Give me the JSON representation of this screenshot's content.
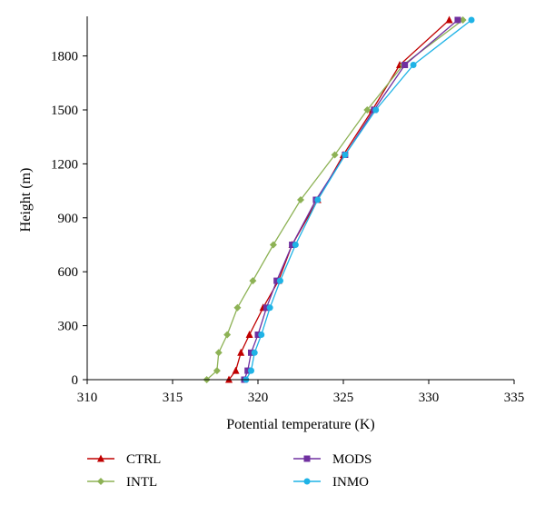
{
  "chart_data": {
    "type": "line",
    "xlabel": "Potential temperature (K)",
    "ylabel": "Height (m)",
    "xlim": [
      310,
      335
    ],
    "ylim": [
      0,
      2000
    ],
    "xticks": [
      310,
      315,
      320,
      325,
      330,
      335
    ],
    "yticks": [
      0,
      300,
      600,
      900,
      1200,
      1500,
      1800
    ],
    "legend_position": "bottom",
    "grid": false,
    "series": [
      {
        "name": "CTRL",
        "color": "#c00000",
        "marker": "triangle",
        "points": [
          {
            "x": 318.3,
            "y": 0
          },
          {
            "x": 318.7,
            "y": 50
          },
          {
            "x": 319.0,
            "y": 150
          },
          {
            "x": 319.5,
            "y": 250
          },
          {
            "x": 320.3,
            "y": 400
          },
          {
            "x": 321.2,
            "y": 550
          },
          {
            "x": 322.0,
            "y": 750
          },
          {
            "x": 323.5,
            "y": 1000
          },
          {
            "x": 325.0,
            "y": 1250
          },
          {
            "x": 326.7,
            "y": 1500
          },
          {
            "x": 328.3,
            "y": 1750
          },
          {
            "x": 331.2,
            "y": 2000
          }
        ]
      },
      {
        "name": "INTL",
        "color": "#8db255",
        "marker": "diamond",
        "points": [
          {
            "x": 317.0,
            "y": 0
          },
          {
            "x": 317.6,
            "y": 50
          },
          {
            "x": 317.7,
            "y": 150
          },
          {
            "x": 318.2,
            "y": 250
          },
          {
            "x": 318.8,
            "y": 400
          },
          {
            "x": 319.7,
            "y": 550
          },
          {
            "x": 320.9,
            "y": 750
          },
          {
            "x": 322.5,
            "y": 1000
          },
          {
            "x": 324.5,
            "y": 1250
          },
          {
            "x": 326.4,
            "y": 1500
          },
          {
            "x": 328.5,
            "y": 1750
          },
          {
            "x": 332.0,
            "y": 2000
          }
        ]
      },
      {
        "name": "MODS",
        "color": "#7030a0",
        "marker": "square",
        "points": [
          {
            "x": 319.2,
            "y": 0
          },
          {
            "x": 319.4,
            "y": 50
          },
          {
            "x": 319.6,
            "y": 150
          },
          {
            "x": 320.0,
            "y": 250
          },
          {
            "x": 320.5,
            "y": 400
          },
          {
            "x": 321.1,
            "y": 550
          },
          {
            "x": 322.0,
            "y": 750
          },
          {
            "x": 323.4,
            "y": 1000
          },
          {
            "x": 325.1,
            "y": 1250
          },
          {
            "x": 326.8,
            "y": 1500
          },
          {
            "x": 328.6,
            "y": 1750
          },
          {
            "x": 331.7,
            "y": 2000
          }
        ]
      },
      {
        "name": "INMO",
        "color": "#1fb3e6",
        "marker": "circle",
        "points": [
          {
            "x": 319.3,
            "y": 0
          },
          {
            "x": 319.6,
            "y": 50
          },
          {
            "x": 319.8,
            "y": 150
          },
          {
            "x": 320.2,
            "y": 250
          },
          {
            "x": 320.7,
            "y": 400
          },
          {
            "x": 321.3,
            "y": 550
          },
          {
            "x": 322.2,
            "y": 750
          },
          {
            "x": 323.5,
            "y": 1000
          },
          {
            "x": 325.1,
            "y": 1250
          },
          {
            "x": 326.9,
            "y": 1500
          },
          {
            "x": 329.1,
            "y": 1750
          },
          {
            "x": 332.5,
            "y": 2000
          }
        ]
      }
    ]
  }
}
